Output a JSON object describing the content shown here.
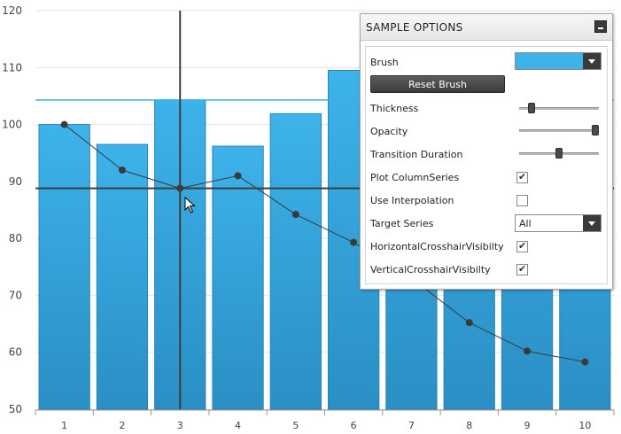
{
  "chart_data": {
    "type": "bar",
    "categories": [
      "1",
      "2",
      "3",
      "4",
      "5",
      "6",
      "7",
      "8",
      "9",
      "10"
    ],
    "series": [
      {
        "type": "column",
        "values": [
          100,
          96.5,
          104.3,
          96.2,
          101.9,
          109.5,
          112,
          113,
          112.5,
          111
        ]
      },
      {
        "type": "line",
        "values": [
          100,
          92,
          88.8,
          91,
          84.2,
          79.3,
          73,
          65.2,
          60.2,
          58.3
        ]
      }
    ],
    "ylim": [
      50,
      120
    ],
    "y_ticks": [
      "50",
      "60",
      "70",
      "80",
      "90",
      "100",
      "110",
      "120"
    ],
    "crosshair": {
      "category_index": 2,
      "value": 88.8
    },
    "reference_line_value": 104.3,
    "colors": {
      "column_top": "#3db3ea",
      "column_bottom": "#2a8fc4",
      "line": "#3a3a3a",
      "reference": "#3ab0e0",
      "grid": "#e3e3e3",
      "crosshair": "#3d3d3d"
    }
  },
  "panel": {
    "title": "SAMPLE OPTIONS",
    "brush_label": "Brush",
    "brush_color": "#3db3ea",
    "reset_label": "Reset Brush",
    "thickness_label": "Thickness",
    "thickness_value": 0.15,
    "opacity_label": "Opacity",
    "opacity_value": 1.0,
    "transition_label": "Transition Duration",
    "transition_value": 0.5,
    "plot_column_label": "Plot ColumnSeries",
    "plot_column_checked": true,
    "interpolation_label": "Use Interpolation",
    "interpolation_checked": false,
    "target_label": "Target Series",
    "target_value": "All",
    "hcross_label": "HorizontalCrosshairVisibilty",
    "hcross_checked": true,
    "vcross_label": "VerticalCrosshairVisibilty",
    "vcross_checked": true,
    "icons": {
      "minimize": "minimize-icon",
      "dropdown": "chevron-down-icon",
      "check": "checkmark-icon",
      "cursor": "mouse-pointer-icon"
    }
  }
}
